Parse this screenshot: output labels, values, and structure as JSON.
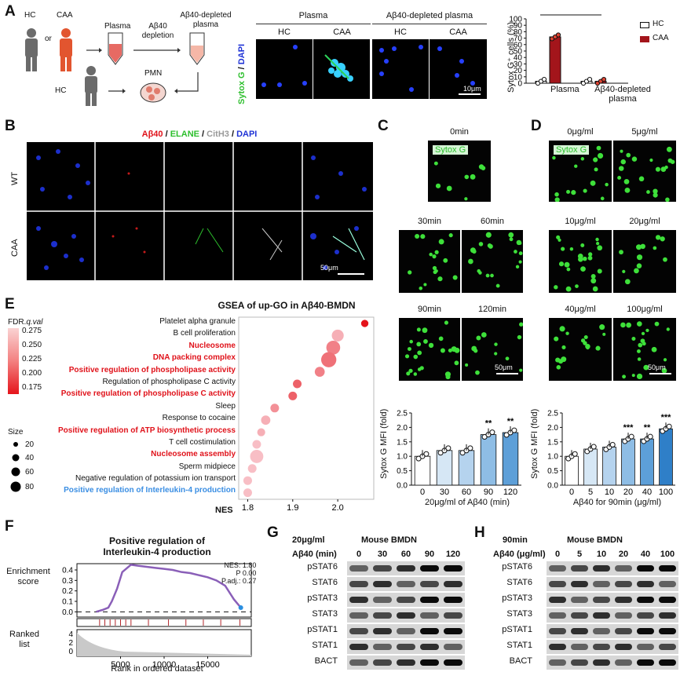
{
  "panels": {
    "A": "A",
    "B": "B",
    "C": "C",
    "D": "D",
    "E": "E",
    "F": "F",
    "G": "G",
    "H": "H"
  },
  "panel_a": {
    "hc": "HC",
    "or": "or",
    "caa": "CAA",
    "plasma": "Plasma",
    "depletion_top": "Aβ40",
    "depletion_bottom": "depletion",
    "depleted_top": "Aβ40-depleted",
    "depleted_bottom": "plasma",
    "hc2": "HC",
    "pmn": "PMN",
    "micro_header_plasma": "Plasma",
    "micro_header_depleted": "Aβ40-depleted plasma",
    "micro_cols": [
      "HC",
      "CAA",
      "HC",
      "CAA"
    ],
    "stain_sytox": "Sytox G",
    "stain_sep": " / ",
    "stain_dapi": "DAPI",
    "scale": "10μm"
  },
  "panel_b": {
    "header": [
      {
        "t": "Aβ40",
        "c": "#e0121a"
      },
      {
        "t": " / ",
        "c": "#111"
      },
      {
        "t": "ELANE",
        "c": "#2dbf2d"
      },
      {
        "t": " / ",
        "c": "#111"
      },
      {
        "t": "CitH3",
        "c": "#9a9a9a"
      },
      {
        "t": " / ",
        "c": "#111"
      },
      {
        "t": "DAPI",
        "c": "#1f33d6"
      }
    ],
    "rows": [
      "WT",
      "CAA"
    ],
    "scale": "50μm"
  },
  "panel_c": {
    "times": [
      "0min",
      "30min",
      "60min",
      "90min",
      "120min"
    ],
    "stain": "Sytox G",
    "scale": "50μm"
  },
  "panel_d": {
    "doses": [
      "0μg/ml",
      "5μg/ml",
      "10μg/ml",
      "20μg/ml",
      "40μg/ml",
      "100μg/ml"
    ],
    "stain": "Sytox G",
    "scale": "50μm"
  },
  "panel_e": {
    "title": "GSEA of up-GO in Aβ40-BMDN",
    "legend_title_a": "FDR.",
    "legend_title_b": "q.val",
    "legend_ticks": [
      "0.275",
      "0.250",
      "0.225",
      "0.200",
      "0.175"
    ],
    "size_title": "Size",
    "sizes": [
      "20",
      "40",
      "60",
      "80"
    ],
    "xlabel": "NES",
    "xticks": [
      "1.8",
      "1.9",
      "2.0"
    ],
    "terms": [
      {
        "label": "Platelet alpha granule",
        "style": "plain"
      },
      {
        "label": "B cell proliferation",
        "style": "plain"
      },
      {
        "label": "Nucleosome",
        "style": "red"
      },
      {
        "label": "DNA packing complex",
        "style": "red"
      },
      {
        "label": "Positive regulation of phospholipase activity",
        "style": "red"
      },
      {
        "label": "Regulation of phospholipase C activity",
        "style": "plain"
      },
      {
        "label": "Positive regulation of phospholipase C activity",
        "style": "red"
      },
      {
        "label": "Sleep",
        "style": "plain"
      },
      {
        "label": "Response to cocaine",
        "style": "plain"
      },
      {
        "label": "Positive regulation of ATP biosynthetic process",
        "style": "red"
      },
      {
        "label": "T cell costimulation",
        "style": "plain"
      },
      {
        "label": "Nucleosome assembly",
        "style": "red"
      },
      {
        "label": "Sperm midpiece",
        "style": "plain"
      },
      {
        "label": "Negative regulation of potassium ion transport",
        "style": "plain"
      },
      {
        "label": "Positive regulation of Interleukin-4 production",
        "style": "blue"
      }
    ]
  },
  "panel_f": {
    "title_line1": "Positive regulation of",
    "title_line2": "Interleukin-4 production",
    "ylabel_top_a": "Enrichment",
    "ylabel_top_b": "score",
    "yticks_top": [
      "0.4",
      "0.3",
      "0.2",
      "0.1",
      "0.0"
    ],
    "ylabel_bottom_a": "Ranked",
    "ylabel_bottom_b": "list",
    "yticks_bottom": [
      "4",
      "2",
      "0"
    ],
    "stats": [
      "NES: 1.80",
      "P 0.00",
      "P.adj.: 0.27"
    ],
    "xticks": [
      "5000",
      "10000",
      "15000"
    ],
    "xlabel": "Rank in ordered dataset"
  },
  "panel_g": {
    "cond": "20μg/ml",
    "title": "Mouse BMDN",
    "row_label": "Aβ40 (min)",
    "lanes": [
      "0",
      "30",
      "60",
      "90",
      "120"
    ],
    "bands": [
      "pSTAT6",
      "STAT6",
      "pSTAT3",
      "STAT3",
      "pSTAT1",
      "STAT1",
      "BACT"
    ]
  },
  "panel_h": {
    "cond": "90min",
    "title": "Mouse BMDN",
    "row_label": "Aβ40 (μg/ml)",
    "lanes": [
      "0",
      "5",
      "10",
      "20",
      "40",
      "100"
    ],
    "bands": [
      "pSTAT6",
      "STAT6",
      "pSTAT3",
      "STAT3",
      "pSTAT1",
      "STAT1",
      "BACT"
    ]
  },
  "legend_a": {
    "hc": "HC",
    "caa": "CAA",
    "hc_color": "#ffffff",
    "caa_color": "#a3151b"
  },
  "chart_data": [
    {
      "type": "bar",
      "id": "sytox-pct",
      "ylabel": "Sytox G⁺ cells (%)",
      "ylim": [
        0,
        100
      ],
      "yticks": [
        "0",
        "10",
        "20",
        "30",
        "40",
        "50",
        "60",
        "70",
        "80",
        "90",
        "100"
      ],
      "categories": [
        "Plasma",
        "Aβ40-depleted plasma"
      ],
      "series": [
        {
          "name": "HC",
          "values": [
            3,
            3
          ]
        },
        {
          "name": "CAA",
          "values": [
            72,
            3
          ]
        }
      ],
      "significance": [
        "***",
        "***"
      ]
    },
    {
      "type": "bar",
      "id": "sytox-time",
      "ylabel": "Sytox G MFI (fold)",
      "xlabel": "20μg/ml of Aβ40 (min)",
      "ylim": [
        0,
        2.5
      ],
      "yticks": [
        "0.0",
        "0.5",
        "1.0",
        "1.5",
        "2.0",
        "2.5"
      ],
      "categories": [
        "0",
        "30",
        "60",
        "90",
        "120"
      ],
      "values": [
        1.0,
        1.2,
        1.2,
        1.75,
        1.82
      ],
      "significance": [
        "",
        "",
        "",
        "**",
        "**"
      ]
    },
    {
      "type": "bar",
      "id": "sytox-dose",
      "ylabel": "Sytox G MFI (fold)",
      "xlabel": "Aβ40 for 90min (μg/ml)",
      "ylim": [
        0,
        2.5
      ],
      "yticks": [
        "0.0",
        "0.5",
        "1.0",
        "1.5",
        "2.0",
        "2.5"
      ],
      "categories": [
        "0",
        "5",
        "10",
        "20",
        "40",
        "100"
      ],
      "values": [
        1.0,
        1.25,
        1.32,
        1.6,
        1.6,
        1.95
      ],
      "significance": [
        "",
        "",
        "",
        "***",
        "**",
        "***"
      ]
    },
    {
      "type": "scatter",
      "id": "gsea-dot",
      "x_name": "NES",
      "xlim": [
        1.78,
        2.08
      ],
      "categories": [
        "Platelet alpha granule",
        "B cell proliferation",
        "Nucleosome",
        "DNA packing complex",
        "Positive regulation of phospholipase activity",
        "Regulation of phospholipase C activity",
        "Positive regulation of phospholipase C activity",
        "Sleep",
        "Response to cocaine",
        "Positive regulation of ATP biosynthetic process",
        "T cell costimulation",
        "Nucleosome assembly",
        "Sperm midpiece",
        "Negative regulation of potassium ion transport",
        "Positive regulation of Interleukin-4 production"
      ],
      "values": [
        2.06,
        2.0,
        1.99,
        1.98,
        1.96,
        1.91,
        1.9,
        1.86,
        1.84,
        1.83,
        1.82,
        1.82,
        1.81,
        1.8,
        1.8
      ],
      "sizes": [
        20,
        55,
        70,
        80,
        40,
        30,
        30,
        30,
        35,
        25,
        30,
        65,
        30,
        30,
        30
      ],
      "fdr": [
        0.17,
        0.27,
        0.24,
        0.23,
        0.24,
        0.22,
        0.22,
        0.25,
        0.27,
        0.27,
        0.28,
        0.28,
        0.28,
        0.28,
        0.28
      ]
    },
    {
      "type": "line",
      "id": "gsea-running",
      "x": [
        2200,
        3000,
        3600,
        4000,
        4600,
        5200,
        6200,
        7000,
        8000,
        9000,
        10000,
        11000,
        12000,
        13000,
        14000,
        15000,
        16000,
        17000,
        18000,
        18800
      ],
      "y": [
        0.0,
        0.02,
        0.04,
        0.1,
        0.22,
        0.38,
        0.45,
        0.44,
        0.43,
        0.42,
        0.41,
        0.4,
        0.38,
        0.37,
        0.35,
        0.33,
        0.3,
        0.25,
        0.12,
        0.04
      ]
    }
  ]
}
